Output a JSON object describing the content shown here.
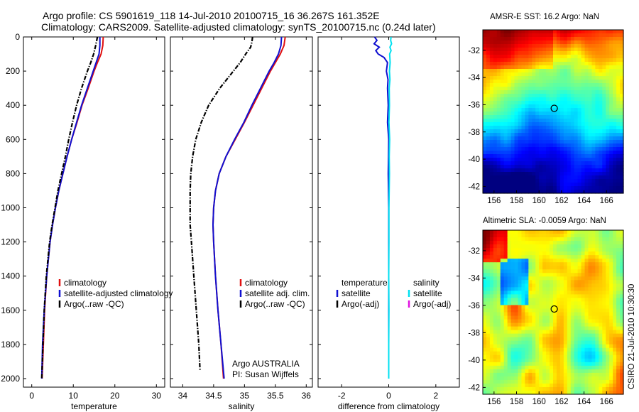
{
  "figure": {
    "title_line1": "Argo profile: CS 5901619_118 14-Jul-2010 20100715_16 36.267S 161.352E",
    "title_line2": "Climatology: CARS2009. Satellite-adjusted climatology: synTS_20100715.nc (0.24d later)",
    "credit": "CSIRO 21-Jul-2010 10:30:30",
    "annotation_line1": "Argo AUSTRALIA",
    "annotation_line2": "PI: Susan Wijffels"
  },
  "colors": {
    "climatology": "#e01010",
    "satellite": "#1010d0",
    "argo": "#000000",
    "sal_satellite": "#00e0f0",
    "sal_argo": "#e010e0"
  },
  "chart_data": [
    {
      "type": "line",
      "id": "temperature",
      "xlabel": "temperature",
      "ylabel": "",
      "xlim": [
        -2,
        32
      ],
      "ylim": [
        2050,
        0
      ],
      "xticks": [
        0,
        10,
        20,
        30
      ],
      "yticks": [
        0,
        200,
        400,
        600,
        800,
        1000,
        1200,
        1400,
        1600,
        1800,
        2000
      ],
      "series": [
        {
          "name": "climatology",
          "color_key": "climatology",
          "style": "solid",
          "y": [
            0,
            50,
            100,
            150,
            200,
            300,
            400,
            500,
            600,
            700,
            800,
            900,
            1000,
            1100,
            1200,
            1400,
            1600,
            1800,
            2000
          ],
          "x": [
            17.2,
            17.1,
            16.7,
            15.8,
            15.0,
            13.6,
            12.1,
            10.9,
            9.6,
            8.5,
            7.5,
            6.5,
            5.7,
            5.0,
            4.4,
            3.6,
            3.1,
            2.8,
            2.5
          ]
        },
        {
          "name": "satellite-adjusted climatology",
          "color_key": "satellite",
          "style": "solid",
          "y": [
            0,
            50,
            100,
            150,
            200,
            300,
            400,
            500,
            600,
            700,
            800,
            900,
            1000,
            1100,
            1200,
            1400,
            1600,
            1800,
            2000
          ],
          "x": [
            16.4,
            16.4,
            16.2,
            15.5,
            14.8,
            13.4,
            12.0,
            10.8,
            9.6,
            8.5,
            7.5,
            6.5,
            5.7,
            5.0,
            4.4,
            3.6,
            3.0,
            2.6,
            2.4
          ]
        },
        {
          "name": "Argo(..raw -QC)",
          "color_key": "argo",
          "style": "dashdot",
          "y": [
            0,
            50,
            100,
            150,
            200,
            300,
            400,
            500,
            600,
            700,
            800,
            900,
            1000,
            1100,
            1200,
            1400,
            1600,
            1800,
            2000
          ],
          "x": [
            15.8,
            15.4,
            14.9,
            14.2,
            13.4,
            12.0,
            10.8,
            9.8,
            8.9,
            8.1,
            7.2,
            6.3,
            5.6,
            4.9,
            4.3,
            3.5,
            3.0,
            2.7,
            2.4
          ]
        }
      ],
      "legend": [
        "climatology",
        "satellite-adjusted climatology",
        "Argo(..raw -QC)"
      ]
    },
    {
      "type": "line",
      "id": "salinity",
      "xlabel": "salinity",
      "ylabel": "",
      "xlim": [
        33.8,
        36.1
      ],
      "ylim": [
        2050,
        0
      ],
      "xticks": [
        34,
        34.5,
        35,
        35.5,
        36
      ],
      "series": [
        {
          "name": "climatology",
          "color_key": "climatology",
          "style": "solid",
          "y": [
            0,
            50,
            100,
            150,
            200,
            300,
            400,
            500,
            600,
            700,
            800,
            900,
            1000,
            1100,
            1200,
            1400,
            1600,
            1800,
            2000
          ],
          "x": [
            35.66,
            35.64,
            35.58,
            35.5,
            35.42,
            35.28,
            35.14,
            35.0,
            34.85,
            34.7,
            34.59,
            34.53,
            34.5,
            34.49,
            34.5,
            34.53,
            34.57,
            34.62,
            34.66
          ]
        },
        {
          "name": "satellite adj. clim.",
          "color_key": "satellite",
          "style": "solid",
          "y": [
            0,
            50,
            100,
            150,
            200,
            300,
            400,
            500,
            600,
            700,
            800,
            900,
            1000,
            1100,
            1200,
            1400,
            1600,
            1800,
            2000
          ],
          "x": [
            35.6,
            35.59,
            35.55,
            35.48,
            35.4,
            35.26,
            35.12,
            34.99,
            34.84,
            34.7,
            34.59,
            34.53,
            34.5,
            34.49,
            34.5,
            34.53,
            34.57,
            34.62,
            34.67
          ]
        },
        {
          "name": "Argo(..raw -QC)",
          "color_key": "argo",
          "style": "dashdot",
          "y": [
            0,
            30,
            60,
            100,
            150,
            200,
            300,
            400,
            500,
            600,
            700,
            800,
            900,
            1000,
            1100,
            1200,
            1400,
            1600,
            1800,
            1950
          ],
          "x": [
            35.13,
            35.12,
            35.1,
            35.02,
            34.93,
            34.82,
            34.6,
            34.42,
            34.3,
            34.21,
            34.16,
            34.13,
            34.12,
            34.12,
            34.12,
            34.14,
            34.18,
            34.22,
            34.26,
            34.28
          ]
        }
      ],
      "legend": [
        "climatology",
        "satellite adj. clim.",
        "Argo(..raw -QC)"
      ]
    },
    {
      "type": "line",
      "id": "difference",
      "xlabel": "difference from climatology",
      "ylabel": "",
      "xlim": [
        -3,
        3
      ],
      "ylim": [
        2050,
        0
      ],
      "xticks": [
        -2,
        0,
        2
      ],
      "series": [
        {
          "name": "temperature satellite",
          "color_key": "satellite",
          "style": "solid",
          "y": [
            0,
            20,
            40,
            60,
            80,
            100,
            120,
            150,
            200,
            250,
            300,
            400,
            500,
            600,
            800,
            1000,
            1200,
            1400,
            1600,
            1800,
            2000
          ],
          "x": [
            -0.6,
            -0.5,
            -0.62,
            -0.4,
            -0.55,
            -0.45,
            -0.2,
            -0.05,
            -0.1,
            -0.03,
            -0.05,
            -0.02,
            -0.05,
            0.0,
            -0.02,
            0.0,
            0.0,
            0.0,
            0.0,
            0.0,
            0.0
          ]
        },
        {
          "name": "salinity satellite",
          "color_key": "sal_satellite",
          "style": "solid",
          "y": [
            0,
            20,
            40,
            60,
            80,
            100,
            150,
            200,
            250,
            300,
            400,
            500,
            600,
            700,
            800,
            1000,
            1200,
            1400,
            1600,
            1800,
            2000
          ],
          "x": [
            0.1,
            0.08,
            0.12,
            0.05,
            0.1,
            0.04,
            0.06,
            0.03,
            0.05,
            0.02,
            0.03,
            0.01,
            0.04,
            0.02,
            0.03,
            0.01,
            0.01,
            0.0,
            0.01,
            0.0,
            0.0
          ]
        }
      ],
      "legend_left_title": "temperature",
      "legend_right_title": "salinity",
      "legend_left": [
        "satellite",
        "Argo(-adj)"
      ],
      "legend_right": [
        "satellite",
        "Argo(-adj)"
      ]
    },
    {
      "type": "heatmap",
      "id": "sst_map",
      "title": "AMSR-E SST: 16.2 Argo: NaN",
      "xlim": [
        155,
        167.5
      ],
      "ylim": [
        -42.5,
        -30.5
      ],
      "xticks": [
        156,
        158,
        160,
        162,
        164,
        166
      ],
      "yticks": [
        -32,
        -34,
        -36,
        -38,
        -40,
        -42
      ],
      "marker": {
        "lon": 161.352,
        "lat": -36.267
      }
    },
    {
      "type": "heatmap",
      "id": "sla_map",
      "title": "Altimetric SLA: -0.0059 Argo: NaN",
      "xlim": [
        155,
        167.5
      ],
      "ylim": [
        -42.5,
        -30.5
      ],
      "xticks": [
        156,
        158,
        160,
        162,
        164,
        166
      ],
      "yticks": [
        -32,
        -34,
        -36,
        -38,
        -40,
        -42
      ],
      "marker": {
        "lon": 161.352,
        "lat": -36.267
      }
    }
  ]
}
